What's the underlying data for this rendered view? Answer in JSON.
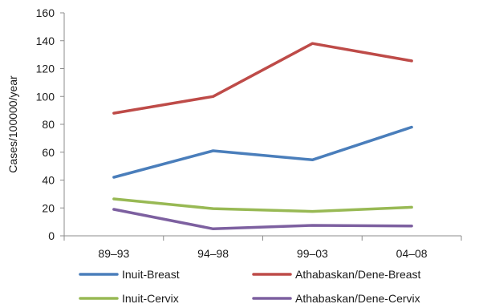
{
  "chart_data": {
    "type": "line",
    "title": "",
    "xlabel": "",
    "ylabel": "Cases/100000/year",
    "categories": [
      "89–93",
      "94–98",
      "99–03",
      "04–08"
    ],
    "ylim": [
      0,
      160
    ],
    "yticks": [
      0,
      20,
      40,
      60,
      80,
      100,
      120,
      140,
      160
    ],
    "grid": false,
    "legend_position": "bottom",
    "series": [
      {
        "name": "Inuit-Breast",
        "color": "#4a7ebb",
        "values": [
          42,
          61,
          54.5,
          78
        ]
      },
      {
        "name": "Athabaskan/Dene-Breast",
        "color": "#be4b48",
        "values": [
          88,
          100,
          138,
          125.5
        ]
      },
      {
        "name": "Inuit-Cervix",
        "color": "#98b954",
        "values": [
          26.5,
          19.5,
          17.5,
          20.5
        ]
      },
      {
        "name": "Athabaskan/Dene-Cervix",
        "color": "#7d60a0",
        "values": [
          19,
          5,
          7.5,
          7
        ]
      }
    ]
  }
}
